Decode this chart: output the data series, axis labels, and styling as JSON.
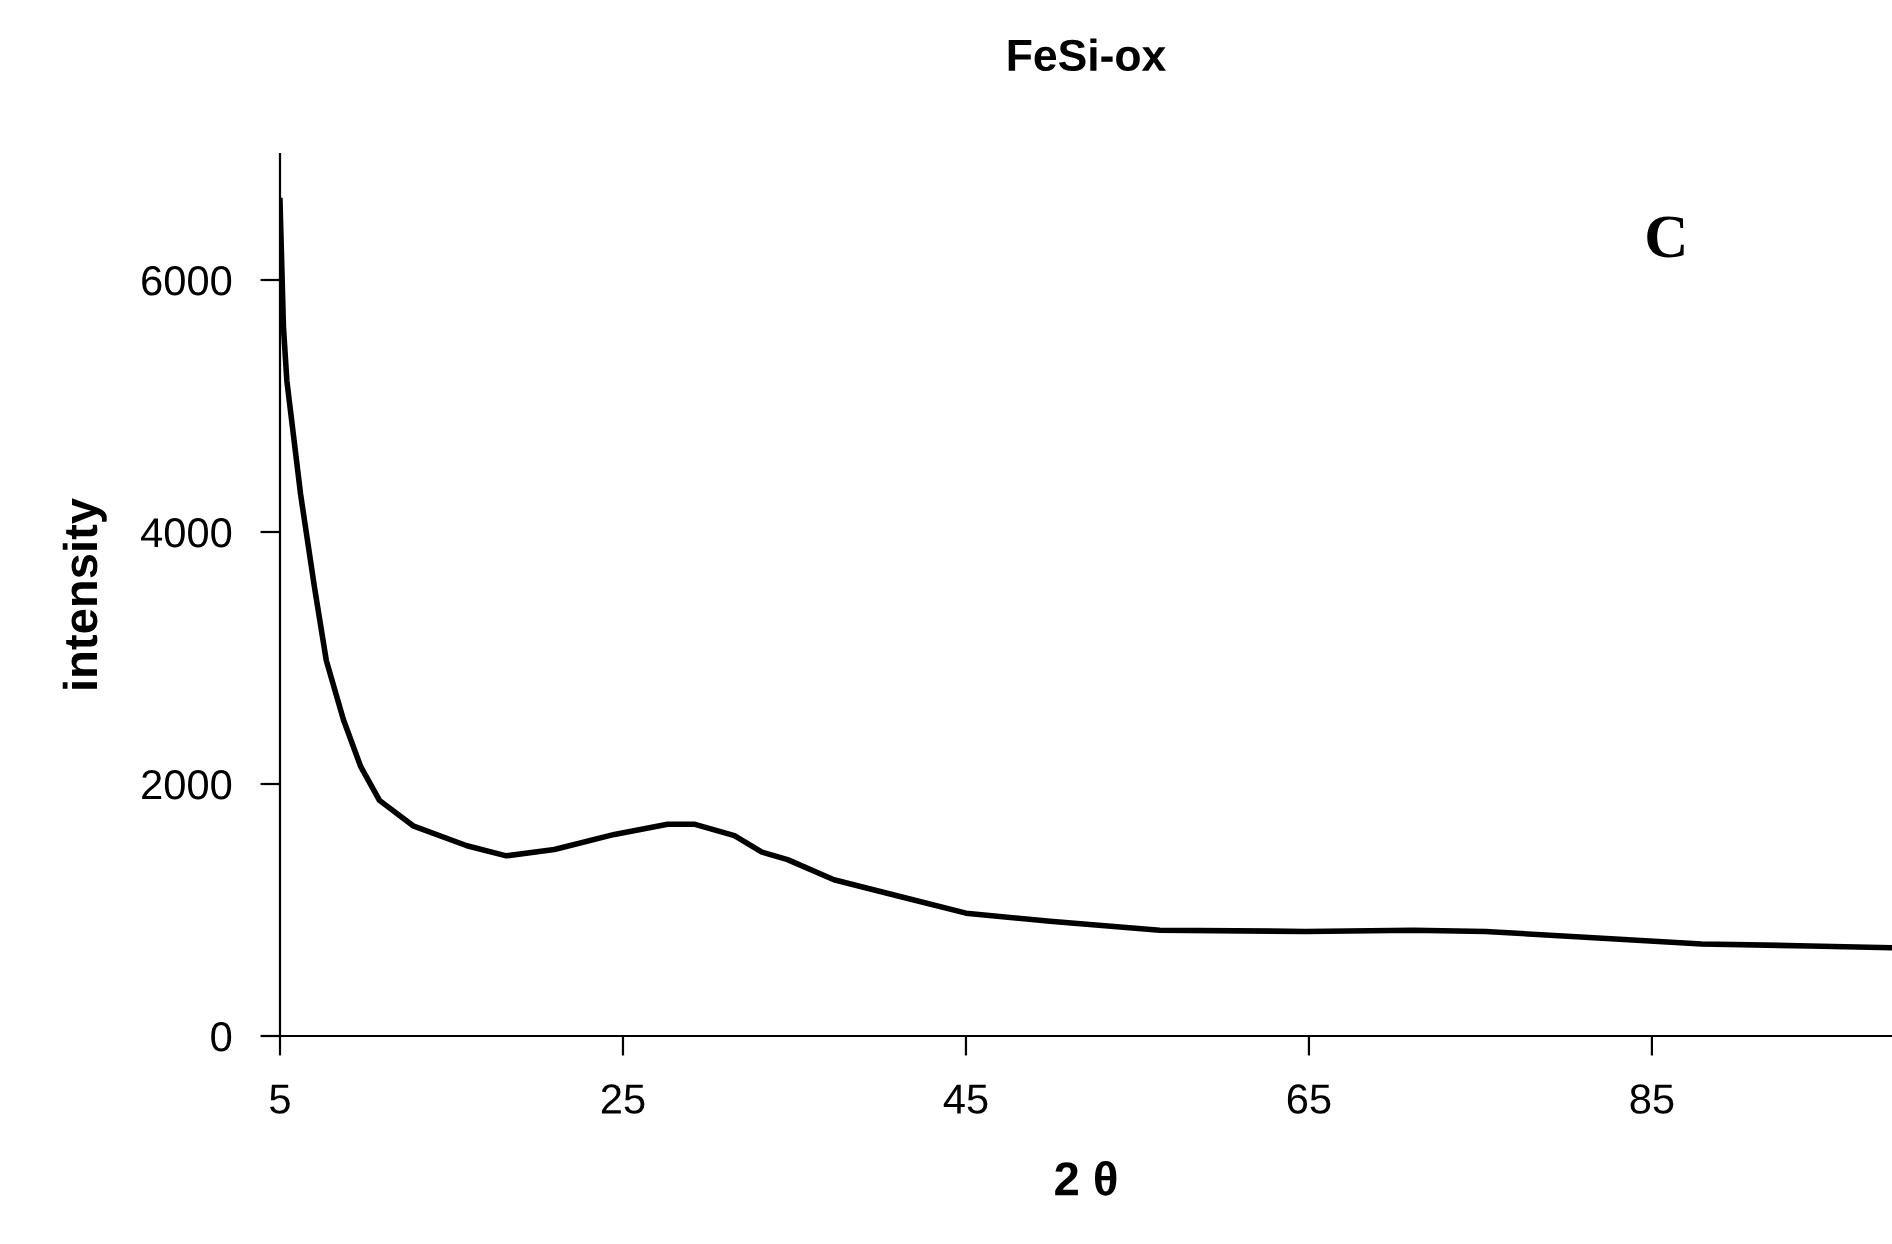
{
  "chart_data": {
    "type": "line",
    "title": "FeSi-ox",
    "xlabel": "2 θ",
    "ylabel": "intensity",
    "annotations": [
      "C"
    ],
    "series": [
      {
        "color": "#000000",
        "x": [
          5,
          5.2,
          5.4,
          6.2,
          7.0,
          7.7,
          8.7,
          9.7,
          10.8,
          12.8,
          15.9,
          18.2,
          21.0,
          24.5,
          27.6,
          29.2,
          31.5,
          33.1,
          34.6,
          37.3,
          41.5,
          45,
          49.9,
          56.3,
          64.8,
          71.1,
          75.3,
          81.6,
          87.9,
          94.2,
          99
        ],
        "values": [
          6630,
          5630,
          5200,
          4300,
          3570,
          2980,
          2510,
          2140,
          1870,
          1665,
          1510,
          1430,
          1480,
          1600,
          1680,
          1680,
          1590,
          1460,
          1400,
          1240,
          1095,
          975,
          910,
          840,
          830,
          840,
          830,
          780,
          730,
          715,
          700
        ]
      }
    ],
    "xlim": [
      5,
      99
    ],
    "ylim": [
      0,
      7000
    ],
    "xticks": [
      5,
      25,
      45,
      65,
      85
    ],
    "yticks": [
      0,
      2000,
      4000,
      6000
    ],
    "grid": false,
    "legend": false,
    "marker": "none",
    "line_style": "solid"
  }
}
